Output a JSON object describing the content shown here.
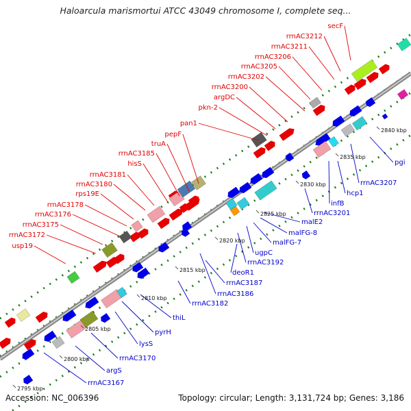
{
  "header": {
    "title": "Haloarcula marismortui ATCC 43049 chromosome I, complete seq..."
  },
  "footer": {
    "accession": "Accession: NC_006396",
    "summary": "Topology: circular; Length: 3,131,724 bp; Genes: 3,186"
  },
  "colors": {
    "forward_label": "#e00000",
    "reverse_label": "#0000cc",
    "backbone": "#8a8a8a",
    "dotted_track": "#1a7a1a"
  },
  "ticks": [
    "2795 kbp",
    "2800 kbp",
    "2805 kbp",
    "2810 kbp",
    "2815 kbp",
    "2820 kbp",
    "2825 kbp",
    "2830 kbp",
    "2835 kbp",
    "2840 kbp"
  ],
  "forward_genes": [
    "usp19",
    "rrnAC3172",
    "rrnAC3175",
    "rrnAC3176",
    "rrnAC3178",
    "rps19E",
    "rrnAC3180",
    "rrnAC3181",
    "hisS",
    "rrnAC3185",
    "truA",
    "pepF",
    "pan1",
    "pkn-2",
    "argDC",
    "rrnAC3200",
    "rrnAC3202",
    "rrnAC3205",
    "rrnAC3206",
    "rrnAC3211",
    "rrnAC3212",
    "secF"
  ],
  "reverse_genes": [
    "rrnAC3167",
    "argS",
    "rrnAC3170",
    "lysS",
    "pyrH",
    "thiL",
    "rrnAC3182",
    "rrnAC3186",
    "rrnAC3187",
    "deoR1",
    "rrnAC3192",
    "ugpC",
    "malFG-7",
    "malFG-8",
    "malE2",
    "rrnAC3201",
    "infB",
    "hcp1",
    "rrnAC3207",
    "pgi"
  ]
}
